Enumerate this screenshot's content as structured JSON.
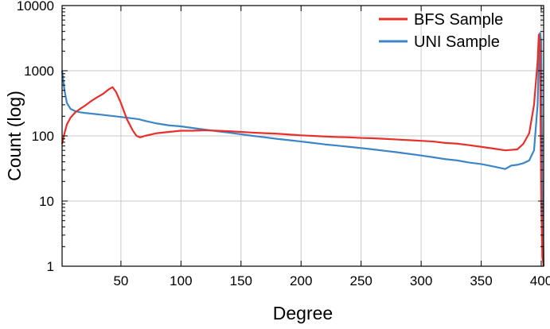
{
  "chart_data": {
    "type": "line",
    "title": "",
    "xlabel": "Degree",
    "ylabel": "Count (log)",
    "xlim": [
      1,
      402
    ],
    "ylim": [
      1,
      10000
    ],
    "yscale": "log",
    "grid": true,
    "legend_position": "top-right",
    "x_ticks": [
      50,
      100,
      150,
      200,
      250,
      300,
      350,
      400
    ],
    "x_tick_labels": [
      "50",
      "100",
      "150",
      "200",
      "250",
      "300",
      "350",
      "400"
    ],
    "y_ticks": [
      1,
      10,
      100,
      1000,
      10000
    ],
    "y_tick_labels": [
      "1",
      "10",
      "100",
      "1000",
      "10000"
    ],
    "series": [
      {
        "name": "BFS Sample",
        "color": "#e8302a",
        "x": [
          1,
          3,
          5,
          8,
          12,
          16,
          20,
          25,
          30,
          35,
          40,
          43,
          46,
          50,
          55,
          60,
          63,
          66,
          70,
          80,
          90,
          100,
          110,
          120,
          130,
          140,
          150,
          160,
          170,
          180,
          190,
          200,
          210,
          220,
          230,
          240,
          250,
          260,
          270,
          280,
          290,
          300,
          310,
          320,
          330,
          340,
          350,
          360,
          370,
          380,
          385,
          390,
          394,
          397,
          398,
          399,
          400,
          401,
          402
        ],
        "y": [
          75,
          110,
          150,
          190,
          230,
          260,
          290,
          340,
          390,
          440,
          520,
          560,
          470,
          320,
          180,
          120,
          100,
          95,
          100,
          110,
          115,
          120,
          120,
          122,
          120,
          118,
          115,
          112,
          110,
          108,
          105,
          102,
          100,
          98,
          96,
          95,
          93,
          92,
          90,
          88,
          86,
          84,
          82,
          78,
          76,
          72,
          68,
          64,
          60,
          62,
          75,
          110,
          300,
          1400,
          3600,
          2500,
          10,
          1.4,
          1
        ]
      },
      {
        "name": "UNI Sample",
        "color": "#3b86c6",
        "x": [
          1,
          3,
          5,
          8,
          12,
          16,
          20,
          25,
          30,
          35,
          40,
          45,
          50,
          55,
          60,
          65,
          70,
          80,
          90,
          100,
          110,
          120,
          130,
          140,
          150,
          160,
          170,
          180,
          190,
          200,
          210,
          220,
          230,
          240,
          250,
          260,
          270,
          280,
          290,
          300,
          310,
          320,
          330,
          340,
          350,
          360,
          370,
          375,
          380,
          385,
          390,
          394,
          397,
          398,
          399,
          400,
          401,
          402
        ],
        "y": [
          1000,
          500,
          320,
          260,
          240,
          230,
          225,
          220,
          215,
          210,
          205,
          200,
          195,
          190,
          185,
          180,
          170,
          155,
          145,
          140,
          132,
          125,
          118,
          112,
          106,
          100,
          95,
          90,
          86,
          82,
          78,
          74,
          71,
          68,
          65,
          62,
          59,
          56,
          53,
          50,
          47,
          44,
          42,
          39,
          37,
          34,
          31,
          35,
          36,
          38,
          42,
          60,
          300,
          1500,
          3800,
          2800,
          8,
          1
        ]
      }
    ]
  }
}
